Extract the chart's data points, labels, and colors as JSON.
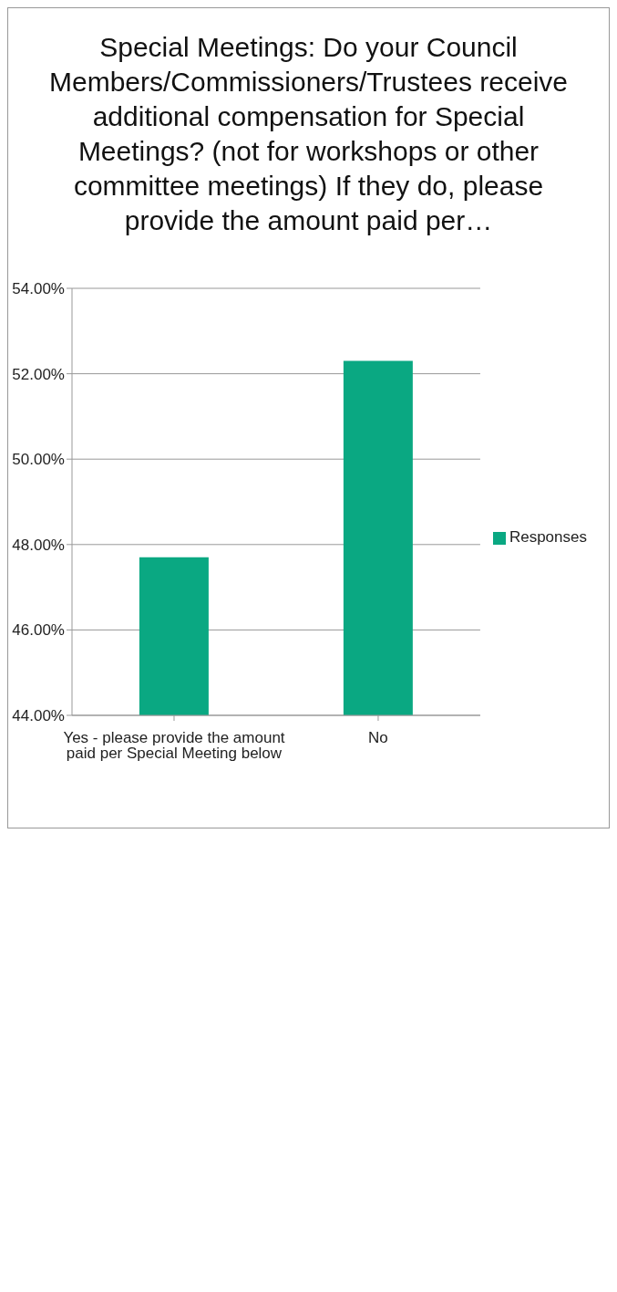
{
  "chart_data": {
    "type": "bar",
    "title": "Special Meetings: Do your Council Members/Commissioners/Trustees receive additional compensation for Special Meetings? (not for workshops or other committee meetings) If they do, please provide the amount paid per…",
    "categories": [
      "Yes - please provide the amount paid per Special Meeting below",
      "No"
    ],
    "series": [
      {
        "name": "Responses",
        "color": "#0aa882",
        "values": [
          47.7,
          52.3
        ]
      }
    ],
    "ylim": [
      44,
      54
    ],
    "yticks": [
      {
        "value": 44,
        "label": "44.00%"
      },
      {
        "value": 46,
        "label": "46.00%"
      },
      {
        "value": 48,
        "label": "48.00%"
      },
      {
        "value": 50,
        "label": "50.00%"
      },
      {
        "value": 52,
        "label": "52.00%"
      },
      {
        "value": 54,
        "label": "54.00%"
      }
    ],
    "grid": "y",
    "legend": "right"
  }
}
